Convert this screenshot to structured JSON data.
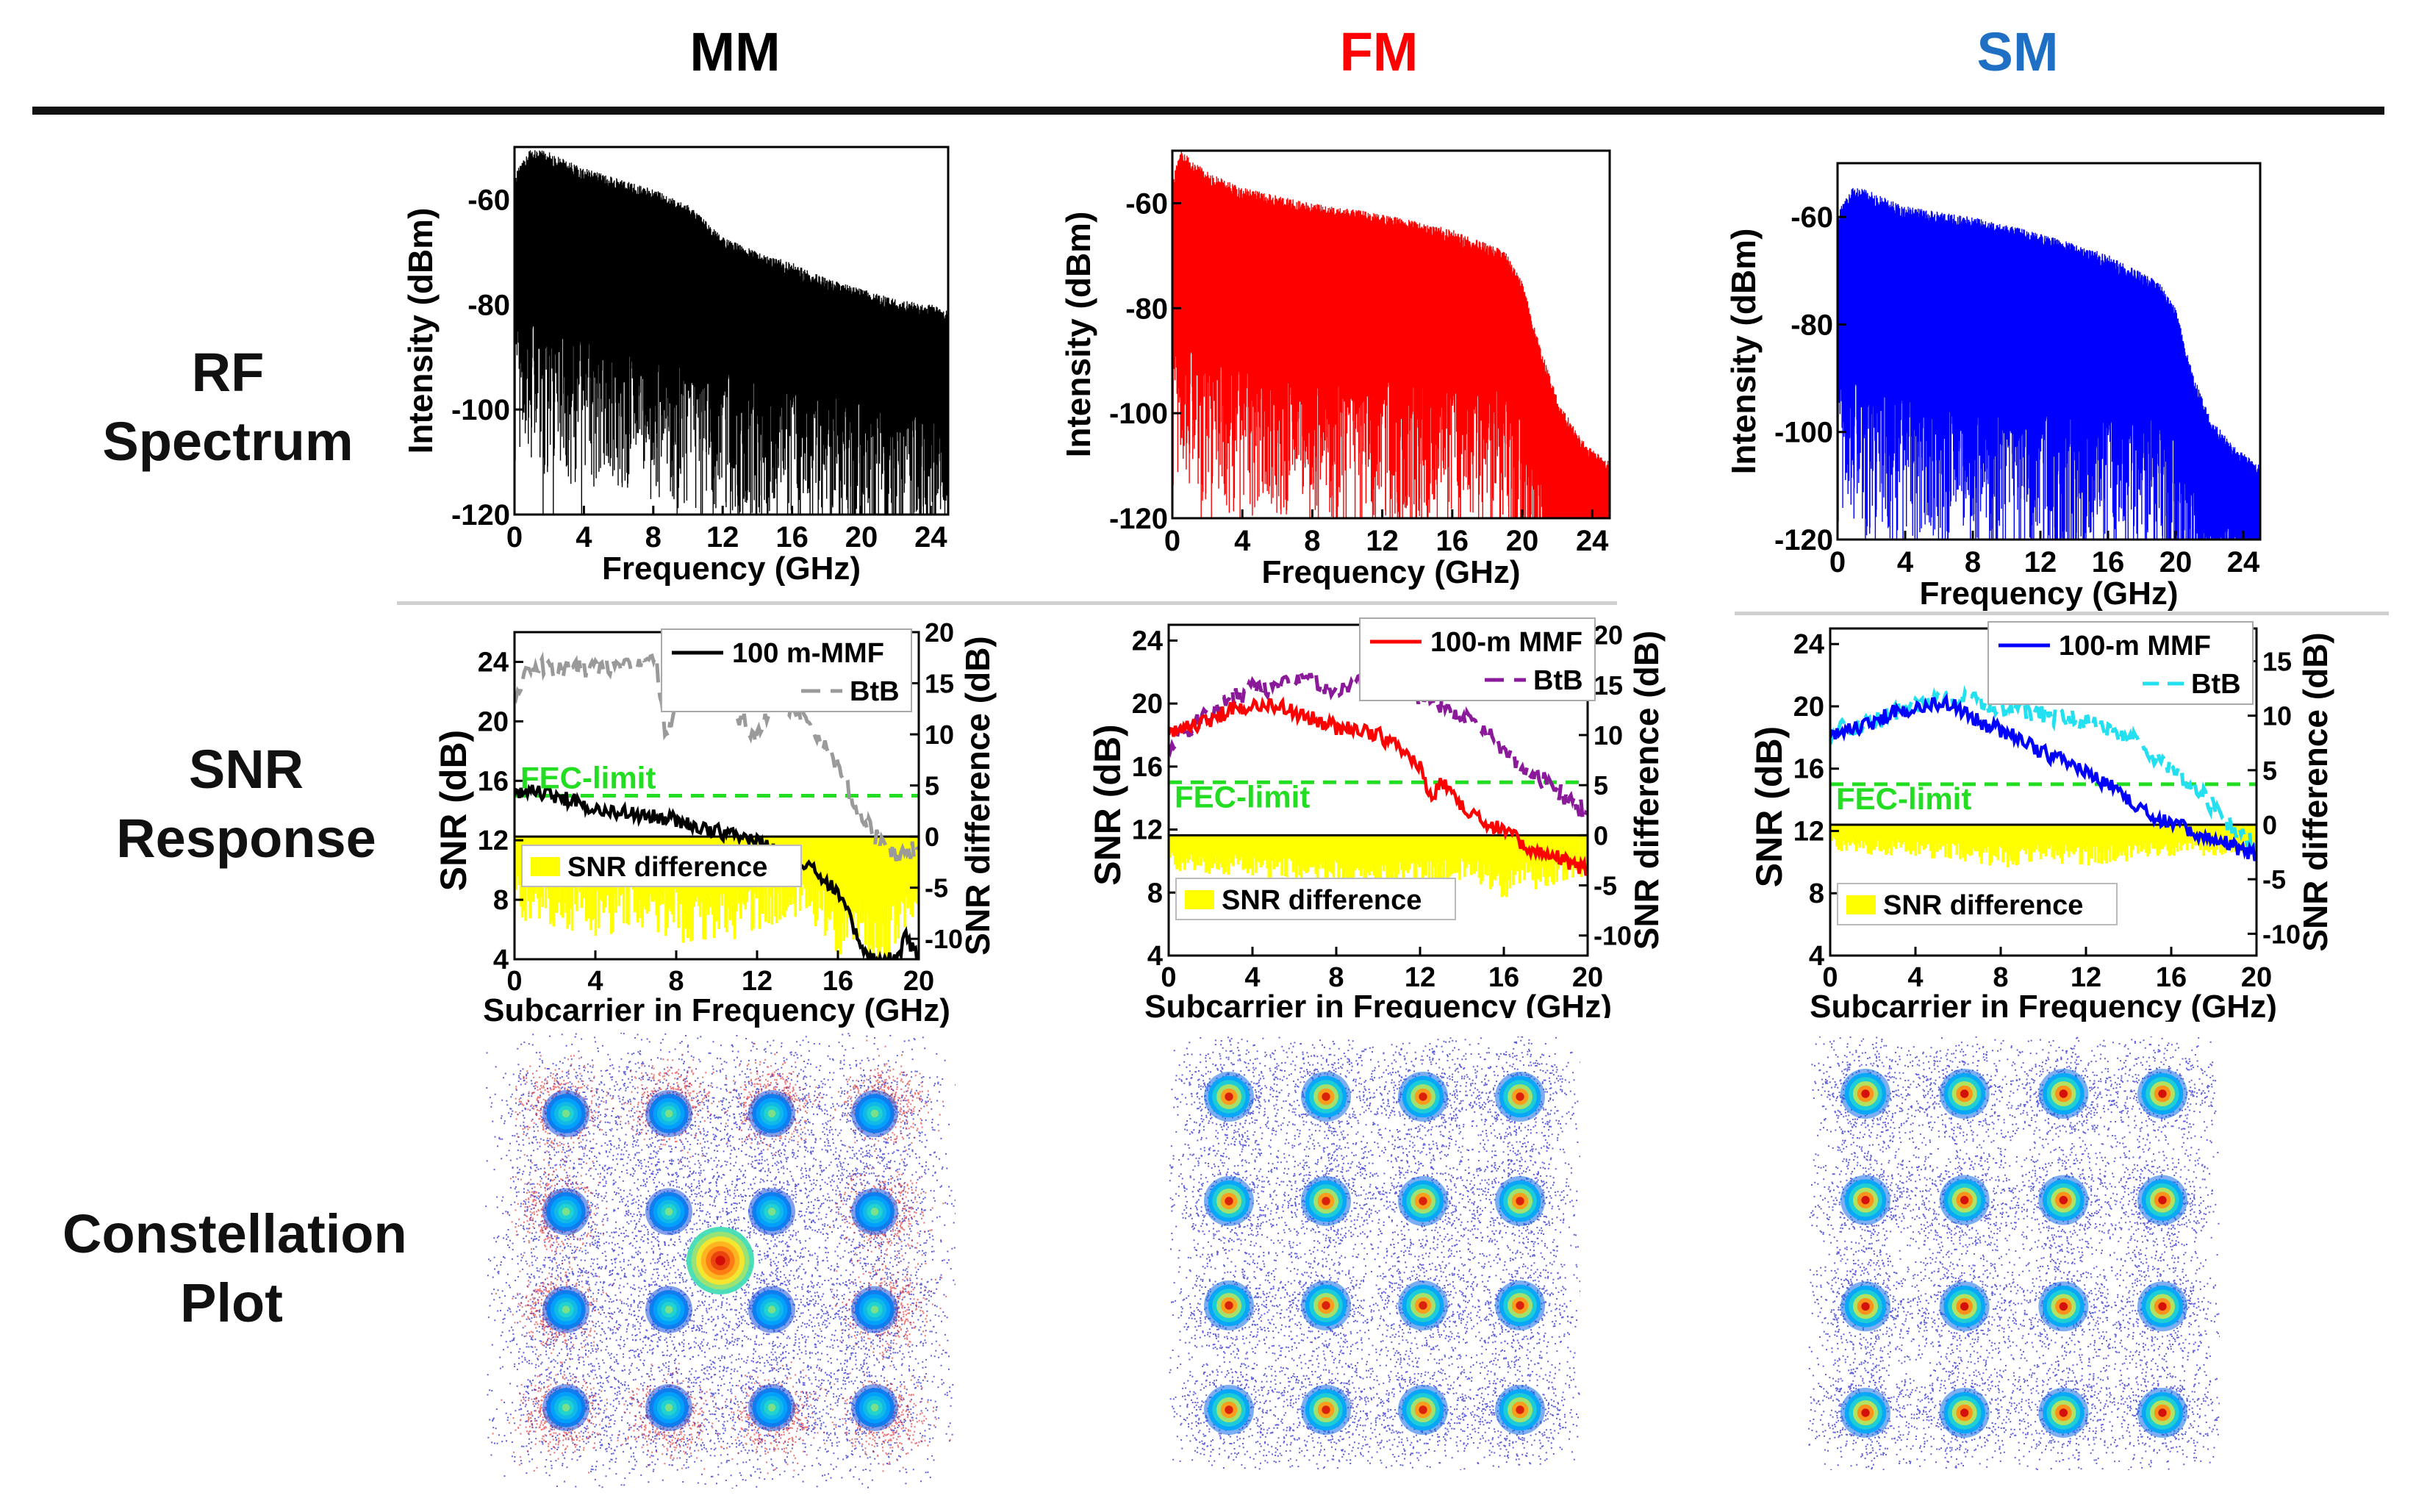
{
  "column_titles": {
    "mm": "MM",
    "fm": "FM",
    "sm": "SM"
  },
  "row_labels": {
    "rf": [
      "RF",
      "Spectrum"
    ],
    "snr": [
      "SNR",
      "Response"
    ],
    "constellation": [
      "Constellation",
      "Plot"
    ]
  },
  "colors": {
    "mm": "#000000",
    "fm": "#ff0000",
    "sm": "#0000ff",
    "sm_title": "#1f6fc5",
    "fec": "#22dd22",
    "btb_fm": "#8b1a9a",
    "btb_sm": "#22e0f0",
    "btb_mm": "#9a9a9a",
    "snr_diff": "#ffff00"
  },
  "chart_data": [
    {
      "id": "rf-mm",
      "type": "line",
      "title": "",
      "xlabel": "Frequency (GHz)",
      "ylabel": "Intensity (dBm)",
      "xlim": [
        0,
        25
      ],
      "ylim": [
        -120,
        -50
      ],
      "xticks": [
        0,
        4,
        8,
        12,
        16,
        20,
        24
      ],
      "yticks": [
        -60,
        -80,
        -100,
        -120
      ],
      "envelope_top": {
        "x": [
          0,
          1,
          2,
          4,
          6,
          8,
          10,
          12,
          14,
          16,
          18,
          20,
          22,
          24,
          25
        ],
        "y": [
          -58,
          -53,
          -54,
          -57,
          -59,
          -61,
          -64,
          -70,
          -73,
          -75,
          -78,
          -80,
          -82,
          -83,
          -84
        ]
      },
      "envelope_floor": {
        "x": [
          0,
          4,
          8,
          12,
          16,
          20,
          24,
          25
        ],
        "y": [
          -81,
          -85,
          -88,
          -91,
          -94,
          -97,
          -99,
          -100
        ]
      }
    },
    {
      "id": "rf-fm",
      "type": "line",
      "title": "",
      "xlabel": "Frequency (GHz)",
      "ylabel": "Intensity (dBm)",
      "xlim": [
        0,
        25
      ],
      "ylim": [
        -120,
        -50
      ],
      "xticks": [
        0,
        4,
        8,
        12,
        16,
        20,
        24
      ],
      "yticks": [
        -60,
        -80,
        -100,
        -120
      ],
      "envelope_top": {
        "x": [
          0,
          0.5,
          2,
          4,
          8,
          12,
          16,
          19,
          20,
          21,
          22,
          23,
          24,
          25
        ],
        "y": [
          -58,
          -53,
          -57,
          -60,
          -63,
          -65,
          -68,
          -72,
          -78,
          -90,
          -100,
          -106,
          -110,
          -112
        ]
      },
      "envelope_floor": {
        "x": [
          0,
          4,
          8,
          12,
          16,
          19,
          20,
          21,
          22,
          23,
          24,
          25
        ],
        "y": [
          -85,
          -90,
          -92,
          -92,
          -93,
          -94,
          -100,
          -110,
          -118,
          -120,
          -120,
          -120
        ]
      }
    },
    {
      "id": "rf-sm",
      "type": "line",
      "title": "",
      "xlabel": "Frequency (GHz)",
      "ylabel": "Intensity (dBm)",
      "xlim": [
        0,
        25
      ],
      "ylim": [
        -120,
        -50
      ],
      "xticks": [
        0,
        4,
        8,
        12,
        16,
        20,
        24
      ],
      "yticks": [
        -60,
        -80,
        -100,
        -120
      ],
      "envelope_top": {
        "x": [
          0,
          1,
          4,
          8,
          12,
          16,
          19,
          20,
          21,
          22,
          23,
          24,
          25
        ],
        "y": [
          -62,
          -57,
          -61,
          -63,
          -66,
          -70,
          -75,
          -80,
          -92,
          -100,
          -104,
          -107,
          -109
        ]
      },
      "envelope_floor": {
        "x": [
          0,
          4,
          8,
          12,
          16,
          19,
          20,
          21,
          22,
          23,
          24,
          25
        ],
        "y": [
          -88,
          -92,
          -94,
          -95,
          -95,
          -96,
          -100,
          -108,
          -113,
          -115,
          -116,
          -117
        ]
      }
    },
    {
      "id": "snr-mm",
      "type": "line",
      "title": "",
      "xlabel": "Subcarrier in Frequency (GHz)",
      "ylabel": "SNR (dB)",
      "y2label": "SNR difference (dB)",
      "xlim": [
        0,
        20
      ],
      "ylim": [
        4,
        26
      ],
      "y2lim": [
        -12,
        20
      ],
      "xticks": [
        0,
        4,
        8,
        12,
        16,
        20
      ],
      "yticks": [
        4,
        8,
        12,
        16,
        20,
        24
      ],
      "y2ticks": [
        -10,
        -5,
        0,
        5,
        10,
        15,
        20
      ],
      "fec_limit": 15.0,
      "fec_label": "FEC-limit",
      "legend": [
        "100 m-MMF",
        "BtB"
      ],
      "diff_label": "SNR difference",
      "series": [
        {
          "name": "100 m-MMF",
          "x": [
            0,
            1,
            2,
            4,
            6,
            8,
            10,
            12,
            13,
            14,
            15,
            16,
            16.5,
            17,
            17.5,
            18,
            19,
            19.3,
            20
          ],
          "y": [
            15.0,
            15.3,
            15.0,
            14.2,
            13.8,
            13.4,
            12.6,
            12.0,
            11.3,
            10.8,
            9.8,
            8.5,
            7.0,
            5.5,
            4.3,
            4.0,
            4.0,
            5.8,
            4.0
          ]
        },
        {
          "name": "BtB",
          "x": [
            0,
            1,
            2,
            4,
            6,
            7,
            7.5,
            8,
            8.5,
            9,
            10,
            11,
            12,
            13,
            14,
            15,
            16,
            17,
            18,
            19,
            20
          ],
          "y": [
            22.0,
            24.0,
            23.4,
            23.6,
            23.8,
            23.9,
            19.0,
            21.5,
            23.0,
            22.5,
            22.0,
            20.5,
            19.0,
            21.5,
            20.5,
            19.0,
            17.0,
            14.0,
            12.0,
            11.0,
            11.5
          ]
        },
        {
          "name": "SNR difference",
          "x": [
            0,
            2,
            4,
            6,
            8,
            10,
            12,
            14,
            16,
            18,
            20
          ],
          "y": [
            -7.0,
            -8.0,
            -8.5,
            -8.0,
            -9.0,
            -9.5,
            -8.5,
            -7.0,
            -10.0,
            -12.0,
            -6.0
          ]
        }
      ]
    },
    {
      "id": "snr-fm",
      "type": "line",
      "title": "",
      "xlabel": "Subcarrier in Frequency (GHz)",
      "ylabel": "SNR (dB)",
      "y2label": "SNR difference (dB)",
      "xlim": [
        0,
        20
      ],
      "ylim": [
        4,
        25
      ],
      "y2lim": [
        -12,
        21
      ],
      "xticks": [
        0,
        4,
        8,
        12,
        16,
        20
      ],
      "yticks": [
        4,
        8,
        12,
        16,
        20,
        24
      ],
      "y2ticks": [
        -10,
        -5,
        0,
        5,
        10,
        15,
        20
      ],
      "fec_limit": 15.0,
      "fec_label": "FEC-limit",
      "legend": [
        "100-m MMF",
        "BtB"
      ],
      "diff_label": "SNR difference",
      "series": [
        {
          "name": "100-m MMF",
          "x": [
            0,
            1,
            2,
            3,
            4,
            5,
            6,
            7,
            8,
            9,
            10,
            11,
            12,
            12.5,
            13,
            14,
            15,
            16,
            17,
            18,
            19,
            20
          ],
          "y": [
            18.0,
            18.5,
            19.0,
            19.6,
            20.0,
            20.0,
            19.5,
            19.0,
            18.5,
            18.5,
            18.0,
            17.2,
            16.0,
            14.0,
            15.0,
            13.5,
            12.5,
            12.0,
            11.0,
            10.5,
            10.0,
            9.5
          ]
        },
        {
          "name": "BtB",
          "x": [
            0,
            2,
            4,
            5,
            6,
            8,
            10,
            12,
            13,
            14,
            15,
            16,
            17,
            18,
            19,
            20
          ],
          "y": [
            17.5,
            19.5,
            21.0,
            21.0,
            21.5,
            21.0,
            21.5,
            20.5,
            20.0,
            19.0,
            18.5,
            17.0,
            16.0,
            15.0,
            14.0,
            13.0
          ]
        },
        {
          "name": "SNR difference",
          "x": [
            0,
            2,
            4,
            6,
            8,
            10,
            12,
            14,
            16,
            18,
            20
          ],
          "y": [
            -3.0,
            -3.5,
            -3.5,
            -4.0,
            -4.5,
            -5.0,
            -4.5,
            -4.0,
            -5.5,
            -4.5,
            -3.5
          ]
        }
      ]
    },
    {
      "id": "snr-sm",
      "type": "line",
      "title": "",
      "xlabel": "Subcarrier in Frequency (GHz)",
      "ylabel": "SNR (dB)",
      "y2label": "SNR difference (dB)",
      "xlim": [
        0,
        20
      ],
      "ylim": [
        4,
        25
      ],
      "y2lim": [
        -12,
        18
      ],
      "xticks": [
        0,
        4,
        8,
        12,
        16,
        20
      ],
      "yticks": [
        4,
        8,
        12,
        16,
        20,
        24
      ],
      "y2ticks": [
        -10,
        -5,
        0,
        5,
        10,
        15
      ],
      "fec_limit": 15.0,
      "fec_label": "FEC-limit",
      "legend": [
        "100-m MMF",
        "BtB"
      ],
      "diff_label": "SNR difference",
      "series": [
        {
          "name": "100-m MMF",
          "x": [
            0,
            1,
            2,
            3,
            4,
            5,
            6,
            7,
            8,
            9,
            10,
            11,
            12,
            13,
            14,
            15,
            16,
            17,
            18,
            19,
            20
          ],
          "y": [
            18.0,
            18.5,
            19.0,
            19.6,
            20.0,
            20.3,
            20.0,
            19.0,
            18.5,
            18.0,
            17.0,
            16.5,
            15.8,
            15.0,
            14.0,
            13.0,
            12.5,
            12.0,
            11.5,
            11.0,
            10.5
          ]
        },
        {
          "name": "BtB",
          "x": [
            0,
            2,
            4,
            5,
            6,
            8,
            10,
            12,
            13,
            14,
            15,
            16,
            17,
            18,
            19,
            20
          ],
          "y": [
            18.5,
            19.0,
            20.0,
            20.5,
            20.5,
            20.0,
            19.5,
            19.0,
            18.5,
            18.0,
            17.0,
            16.0,
            15.0,
            13.5,
            12.0,
            11.0
          ]
        },
        {
          "name": "SNR difference",
          "x": [
            0,
            2,
            4,
            6,
            8,
            10,
            12,
            14,
            16,
            18,
            20
          ],
          "y": [
            -2.0,
            -2.5,
            -2.5,
            -3.0,
            -3.5,
            -3.0,
            -3.5,
            -3.0,
            -2.5,
            -2.5,
            -2.0
          ]
        }
      ]
    },
    {
      "id": "const-mm",
      "type": "scatter",
      "title": "",
      "xlabel": "",
      "ylabel": "",
      "grid_size": 4,
      "note": "16-QAM constellation with red outer halos and a bright center point",
      "hot_points": [
        [
          0.0,
          0.0
        ]
      ]
    },
    {
      "id": "const-fm",
      "type": "scatter",
      "title": "",
      "xlabel": "",
      "ylabel": "",
      "grid_size": 4,
      "note": "16-QAM constellation, clean clusters"
    },
    {
      "id": "const-sm",
      "type": "scatter",
      "title": "",
      "xlabel": "",
      "ylabel": "",
      "grid_size": 4,
      "note": "16-QAM constellation, clean clusters"
    }
  ]
}
